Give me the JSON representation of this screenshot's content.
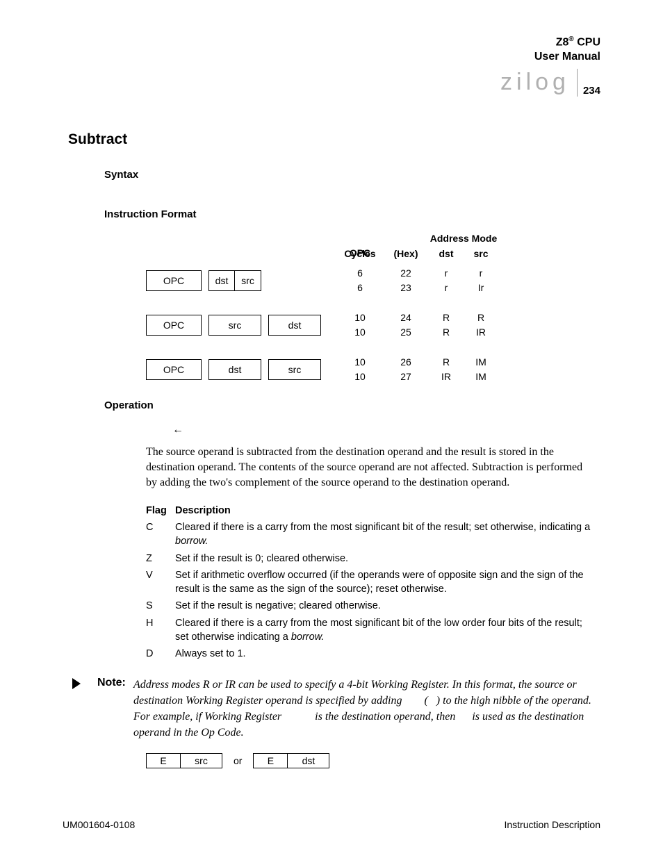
{
  "header": {
    "line1_pre": "Z8",
    "line1_sup": "®",
    "line1_post": " CPU",
    "line2": "User Manual",
    "logo": "zilog",
    "page_num": "234"
  },
  "title": "Subtract",
  "labels": {
    "syntax": "Syntax",
    "instruction_format": "Instruction Format",
    "operation": "Operation",
    "cycles": "Cycles",
    "opc_hex_1": "OPC",
    "opc_hex_2": "(Hex)",
    "addr_mode": "Address Mode",
    "dst": "dst",
    "src": "src",
    "opc_cell": "OPC",
    "flag": "Flag",
    "description": "Description",
    "note": "Note:",
    "or": "or",
    "E": "E"
  },
  "format": {
    "row1": {
      "boxes": [
        [
          "OPC"
        ],
        [
          "dst",
          "src"
        ]
      ],
      "cycles": [
        "6",
        "6"
      ],
      "hex": [
        "22",
        "23"
      ],
      "dst": [
        "r",
        "r"
      ],
      "src": [
        "r",
        "Ir"
      ]
    },
    "row2": {
      "boxes": [
        [
          "OPC"
        ],
        [
          "src"
        ],
        [
          "dst"
        ]
      ],
      "cycles": [
        "10",
        "10"
      ],
      "hex": [
        "24",
        "25"
      ],
      "dst": [
        "R",
        "R"
      ],
      "src": [
        "R",
        "IR"
      ]
    },
    "row3": {
      "boxes": [
        [
          "OPC"
        ],
        [
          "dst"
        ],
        [
          "src"
        ]
      ],
      "cycles": [
        "10",
        "10"
      ],
      "hex": [
        "26",
        "27"
      ],
      "dst": [
        "R",
        "IR"
      ],
      "src": [
        "IM",
        "IM"
      ]
    }
  },
  "operation_arrow": "←",
  "operation_text": "The source operand is subtracted from the destination operand and the result is stored in the destination operand. The contents of the source operand are not affected. Subtraction is performed by adding the two's complement of the source operand to the destination operand.",
  "flags": [
    {
      "f": "C",
      "d": "Cleared if there is a carry from the most significant bit of the result; set otherwise, indicating a <em>borrow.</em>"
    },
    {
      "f": "Z",
      "d": "Set if the result is 0; cleared otherwise."
    },
    {
      "f": "V",
      "d": "Set if arithmetic overflow occurred (if the operands were of opposite sign and the sign of the result is the same as the sign of the source); reset otherwise."
    },
    {
      "f": "S",
      "d": "Set if the result is negative; cleared otherwise."
    },
    {
      "f": "H",
      "d": "Cleared if there is a carry from the most significant bit of the low order four bits of the result; set otherwise indicating a <em>borrow.</em>"
    },
    {
      "f": "D",
      "d": "Always set to 1."
    }
  ],
  "note_text": "Address modes R or IR can be used to specify a 4-bit Working Register. In this format, the source or destination Working Register operand is specified by adding        (   ) to the high nibble of the operand. For example, if Working Register            is the destination operand, then      is used as the destination operand in the Op Code.",
  "footer": {
    "left": "UM001604-0108",
    "right": "Instruction Description"
  },
  "style": {
    "box_opc_w": 80,
    "box_half_w": 38,
    "box_full_w": 76,
    "nbox_e_w": 50,
    "nbox_sd_w": 60
  }
}
